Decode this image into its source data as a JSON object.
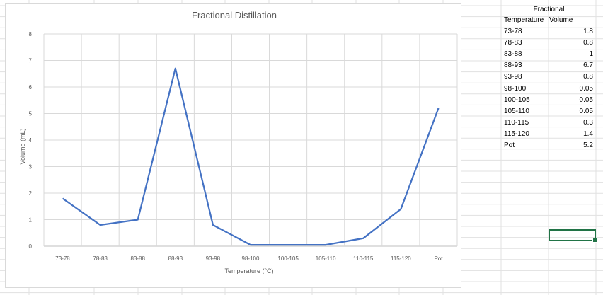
{
  "chart_data": {
    "type": "line",
    "title": "Fractional Distillation",
    "xlabel": "Temperature (°C)",
    "ylabel": "Volume (mL)",
    "categories": [
      "73-78",
      "78-83",
      "83-88",
      "88-93",
      "93-98",
      "98-100",
      "100-105",
      "105-110",
      "110-115",
      "115-120",
      "Pot"
    ],
    "values": [
      1.8,
      0.8,
      1,
      6.7,
      0.8,
      0.05,
      0.05,
      0.05,
      0.3,
      1.4,
      5.2
    ],
    "ylim": [
      0,
      8
    ],
    "yticks": [
      "0",
      "1",
      "2",
      "3",
      "4",
      "5",
      "6",
      "7",
      "8"
    ],
    "grid": true,
    "legend": "none",
    "line_color": "#4472c4"
  },
  "table": {
    "title": "Fractional",
    "headers": [
      "Temperature",
      "Volume"
    ],
    "rows": [
      [
        "73-78",
        "1.8"
      ],
      [
        "78-83",
        "0.8"
      ],
      [
        "83-88",
        "1"
      ],
      [
        "88-93",
        "6.7"
      ],
      [
        "93-98",
        "0.8"
      ],
      [
        "98-100",
        "0.05"
      ],
      [
        "100-105",
        "0.05"
      ],
      [
        "105-110",
        "0.05"
      ],
      [
        "110-115",
        "0.3"
      ],
      [
        "115-120",
        "1.4"
      ],
      [
        "Pot",
        "5.2"
      ]
    ]
  },
  "colors": {
    "selection": "#217346",
    "gridline": "#d9d9d9"
  }
}
